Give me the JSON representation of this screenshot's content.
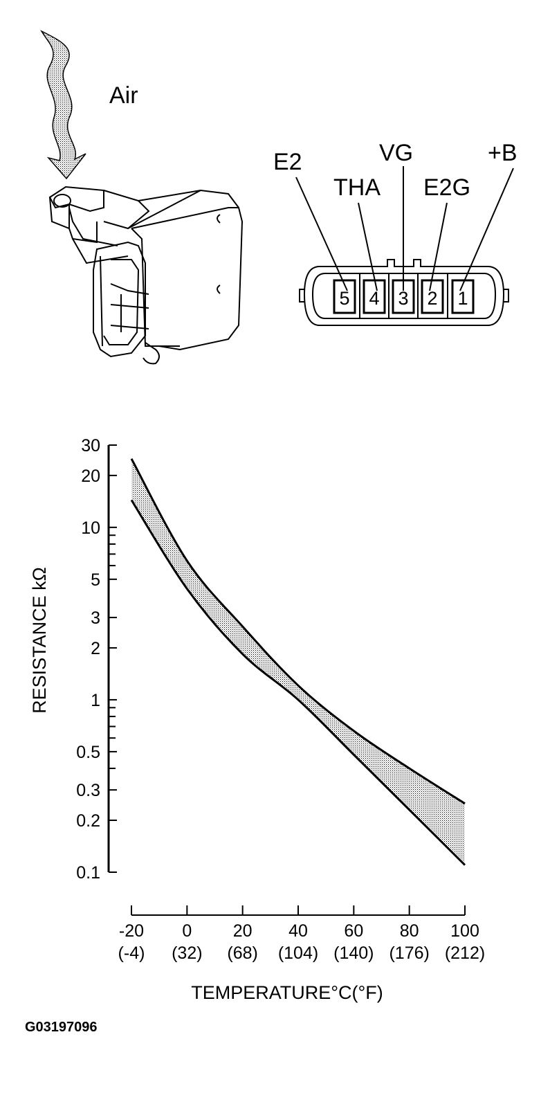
{
  "illustration": {
    "air_label": "Air",
    "connector": {
      "terminals": [
        {
          "pin": "5",
          "name": "E2"
        },
        {
          "pin": "4",
          "name": "THA"
        },
        {
          "pin": "3",
          "name": "VG"
        },
        {
          "pin": "2",
          "name": "E2G"
        },
        {
          "pin": "1",
          "name": "+B"
        }
      ]
    }
  },
  "chart_data": {
    "type": "area",
    "title": "",
    "xlabel": "TEMPERATURE°C(°F)",
    "ylabel": "RESISTANCE kΩ",
    "x_scale": "linear",
    "y_scale": "log",
    "xlim": [
      -20,
      100
    ],
    "ylim": [
      0.1,
      30
    ],
    "x_ticks": [
      {
        "value": -20,
        "label": "-20",
        "sublabel": "(-4)"
      },
      {
        "value": 0,
        "label": "0",
        "sublabel": "(32)"
      },
      {
        "value": 20,
        "label": "20",
        "sublabel": "(68)"
      },
      {
        "value": 40,
        "label": "40",
        "sublabel": "(104)"
      },
      {
        "value": 60,
        "label": "60",
        "sublabel": "(140)"
      },
      {
        "value": 80,
        "label": "80",
        "sublabel": "(176)"
      },
      {
        "value": 100,
        "label": "100",
        "sublabel": "(212)"
      }
    ],
    "y_ticks": [
      {
        "value": 30,
        "label": "30"
      },
      {
        "value": 20,
        "label": "20"
      },
      {
        "value": 10,
        "label": "10"
      },
      {
        "value": 5,
        "label": "5"
      },
      {
        "value": 3,
        "label": "3"
      },
      {
        "value": 2,
        "label": "2"
      },
      {
        "value": 1,
        "label": "1"
      },
      {
        "value": 0.5,
        "label": "0.5"
      },
      {
        "value": 0.3,
        "label": "0.3"
      },
      {
        "value": 0.2,
        "label": "0.2"
      },
      {
        "value": 0.1,
        "label": "0.1"
      }
    ],
    "y_minor_ticks": [
      9,
      8,
      7,
      6,
      0.9,
      0.8,
      0.7,
      0.6,
      0.4
    ],
    "grid": false,
    "band_fill": "stippled gray",
    "x": [
      -20,
      0,
      20,
      40,
      60,
      80,
      100
    ],
    "series": [
      {
        "role": "upper",
        "values": [
          25,
          6.4,
          2.66,
          1.21,
          0.66,
          0.4,
          0.25
        ]
      },
      {
        "role": "lower",
        "values": [
          14.4,
          4.4,
          1.84,
          1.0,
          0.48,
          0.23,
          0.11
        ]
      }
    ]
  },
  "figure_code": "G03197096"
}
